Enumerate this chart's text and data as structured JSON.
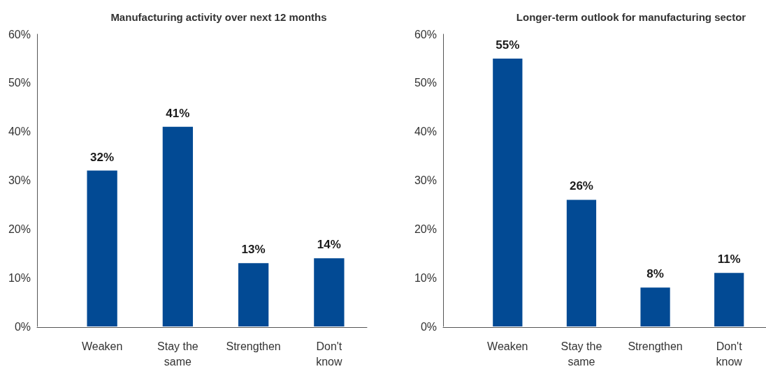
{
  "chart_data": [
    {
      "type": "bar",
      "title": "Manufacturing activity over next 12 months",
      "categories": [
        "Weaken",
        "Stay the same",
        "Strengthen",
        "Don't know"
      ],
      "values": [
        32,
        41,
        13,
        14
      ],
      "value_labels": [
        "32%",
        "41%",
        "13%",
        "14%"
      ],
      "color": "#024a94",
      "ylim": [
        0,
        60
      ],
      "yticks": [
        {
          "value": 0,
          "label": "0%"
        },
        {
          "value": 10,
          "label": "10%"
        },
        {
          "value": 20,
          "label": "20%"
        },
        {
          "value": 30,
          "label": "30%"
        },
        {
          "value": 40,
          "label": "40%"
        },
        {
          "value": 50,
          "label": "50%"
        },
        {
          "value": 60,
          "label": "60%"
        }
      ]
    },
    {
      "type": "bar",
      "title": "Longer-term outlook for manufacturing sector",
      "categories": [
        "Weaken",
        "Stay the same",
        "Strengthen",
        "Don't know"
      ],
      "values": [
        55,
        26,
        8,
        11
      ],
      "value_labels": [
        "55%",
        "26%",
        "8%",
        "11%"
      ],
      "color": "#024a94",
      "ylim": [
        0,
        60
      ],
      "yticks": [
        {
          "value": 0,
          "label": "0%"
        },
        {
          "value": 10,
          "label": "10%"
        },
        {
          "value": 20,
          "label": "20%"
        },
        {
          "value": 30,
          "label": "30%"
        },
        {
          "value": 40,
          "label": "40%"
        },
        {
          "value": 50,
          "label": "50%"
        },
        {
          "value": 60,
          "label": "60%"
        }
      ]
    }
  ]
}
